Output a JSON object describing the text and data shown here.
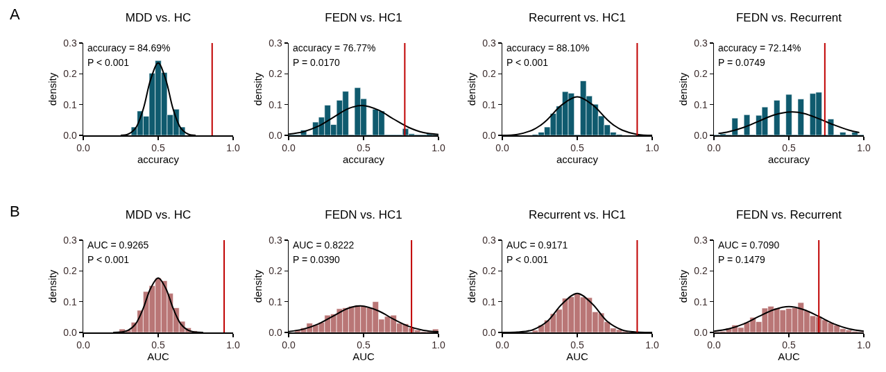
{
  "chart_data": [
    {
      "type": "histogram",
      "title": "MDD vs. HC",
      "xlabel": "accuracy",
      "ylabel": "density",
      "xlim": [
        0,
        1
      ],
      "xticks": [
        {
          "value": 0,
          "label": "0.0"
        },
        {
          "value": 0.5,
          "label": "0.5"
        },
        {
          "value": 1,
          "label": "1.0"
        }
      ],
      "ylim": [
        0,
        0.3
      ],
      "yticks": [
        {
          "value": 0,
          "label": "0.0"
        },
        {
          "value": 0.1,
          "label": "0.1"
        },
        {
          "value": 0.2,
          "label": "0.2"
        },
        {
          "value": 0.3,
          "label": "0.3"
        }
      ],
      "annotations": [
        "A",
        "accuracy = 84.69%",
        "P < 0.001"
      ],
      "ref_lines": [
        {
          "axis": "x",
          "value": 0.86,
          "color": "#c00000"
        }
      ],
      "series": [
        {
          "type": "histogram",
          "color": "#0f5a6e",
          "bins": [
            0.32,
            0.36,
            0.4,
            0.44,
            0.48,
            0.52,
            0.56,
            0.6,
            0.64,
            0.68
          ],
          "values": [
            0.027,
            0.079,
            0.062,
            0.202,
            0.243,
            0.204,
            0.067,
            0.085,
            0.027
          ]
        },
        {
          "type": "line",
          "color": "#000000",
          "x": [
            0.25,
            0.3,
            0.35,
            0.4,
            0.45,
            0.5,
            0.55,
            0.6,
            0.65,
            0.7,
            0.75
          ],
          "values": [
            0,
            0.004,
            0.024,
            0.085,
            0.182,
            0.235,
            0.182,
            0.085,
            0.024,
            0.004,
            0
          ]
        }
      ]
    },
    {
      "type": "histogram",
      "title": "FEDN vs. HC1",
      "xlabel": "accuracy",
      "ylabel": "density",
      "xlim": [
        0,
        1
      ],
      "xticks": [
        {
          "value": 0,
          "label": "0.0"
        },
        {
          "value": 0.5,
          "label": "0.5"
        },
        {
          "value": 1,
          "label": "1.0"
        }
      ],
      "ylim": [
        0,
        0.3
      ],
      "yticks": [
        {
          "value": 0,
          "label": "0.0"
        },
        {
          "value": 0.1,
          "label": "0.1"
        },
        {
          "value": 0.2,
          "label": "0.2"
        },
        {
          "value": 0.3,
          "label": "0.3"
        }
      ],
      "annotations": [
        "accuracy = 76.77%",
        "P = 0.0170"
      ],
      "ref_lines": [
        {
          "axis": "x",
          "value": 0.775,
          "color": "#c00000"
        }
      ],
      "series": [
        {
          "type": "histogram",
          "color": "#0f5a6e",
          "bins": [
            0,
            0.04,
            0.08,
            0.12,
            0.16,
            0.2,
            0.24,
            0.28,
            0.32,
            0.36,
            0.4,
            0.44,
            0.48,
            0.52,
            0.56,
            0.6,
            0.64,
            0.68,
            0.72,
            0.76,
            0.8,
            0.84,
            0.88,
            0.92,
            0.96,
            1
          ],
          "values": [
            0,
            0,
            0.017,
            0,
            0.043,
            0.059,
            0.098,
            0.035,
            0.114,
            0.143,
            0,
            0.155,
            0.119,
            0,
            0.085,
            0.079,
            0,
            0,
            0,
            0.022,
            0.005,
            0,
            0,
            0.005,
            0
          ]
        },
        {
          "type": "line",
          "color": "#000000",
          "x": [
            0,
            0.1,
            0.2,
            0.3,
            0.4,
            0.49,
            0.6,
            0.7,
            0.8,
            0.9,
            1
          ],
          "values": [
            0.004,
            0.012,
            0.03,
            0.059,
            0.087,
            0.097,
            0.082,
            0.053,
            0.026,
            0.009,
            0.003
          ]
        }
      ]
    },
    {
      "type": "histogram",
      "title": "Recurrent vs. HC1",
      "xlabel": "accuracy",
      "ylabel": "density",
      "xlim": [
        0,
        1
      ],
      "xticks": [
        {
          "value": 0,
          "label": "0.0"
        },
        {
          "value": 0.5,
          "label": "0.5"
        },
        {
          "value": 1,
          "label": "1.0"
        }
      ],
      "ylim": [
        0,
        0.3
      ],
      "yticks": [
        {
          "value": 0,
          "label": "0.0"
        },
        {
          "value": 0.1,
          "label": "0.1"
        },
        {
          "value": 0.2,
          "label": "0.2"
        },
        {
          "value": 0.3,
          "label": "0.3"
        }
      ],
      "annotations": [
        "accuracy = 88.10%",
        "P < 0.001"
      ],
      "ref_lines": [
        {
          "axis": "x",
          "value": 0.9,
          "color": "#c00000"
        }
      ],
      "series": [
        {
          "type": "histogram",
          "color": "#0f5a6e",
          "bins": [
            0.2,
            0.24,
            0.28,
            0.32,
            0.36,
            0.4,
            0.44,
            0.48,
            0.52,
            0.56,
            0.6,
            0.64,
            0.68,
            0.72,
            0.76,
            0.8
          ],
          "values": [
            0.003,
            0.01,
            0.027,
            0.071,
            0.095,
            0.142,
            0.137,
            0,
            0.177,
            0.128,
            0.101,
            0.063,
            0.034,
            0.01,
            0.003
          ]
        },
        {
          "type": "line",
          "color": "#000000",
          "x": [
            0,
            0.1,
            0.2,
            0.25,
            0.3,
            0.4,
            0.5,
            0.6,
            0.7,
            0.75,
            0.8,
            0.9,
            1
          ],
          "values": [
            0,
            0.003,
            0.017,
            0.031,
            0.051,
            0.1,
            0.125,
            0.1,
            0.051,
            0.031,
            0.017,
            0.003,
            0
          ]
        }
      ]
    },
    {
      "type": "histogram",
      "title": "FEDN vs. Recurrent",
      "xlabel": "accuracy",
      "ylabel": "density",
      "xlim": [
        0,
        1
      ],
      "xticks": [
        {
          "value": 0,
          "label": "0.0"
        },
        {
          "value": 0.5,
          "label": "0.5"
        },
        {
          "value": 1,
          "label": "1.0"
        }
      ],
      "ylim": [
        0,
        0.3
      ],
      "yticks": [
        {
          "value": 0,
          "label": "0.0"
        },
        {
          "value": 0.1,
          "label": "0.1"
        },
        {
          "value": 0.2,
          "label": "0.2"
        },
        {
          "value": 0.3,
          "label": "0.3"
        }
      ],
      "annotations": [
        "accuracy = 72.14%",
        "P = 0.0749"
      ],
      "ref_lines": [
        {
          "axis": "x",
          "value": 0.74,
          "color": "#c00000"
        }
      ],
      "series": [
        {
          "type": "histogram",
          "color": "#0f5a6e",
          "bins": [
            0,
            0.04,
            0.08,
            0.12,
            0.16,
            0.2,
            0.24,
            0.28,
            0.32,
            0.36,
            0.4,
            0.44,
            0.48,
            0.52,
            0.56,
            0.6,
            0.64,
            0.68,
            0.72,
            0.76,
            0.8,
            0.84,
            0.88,
            0.92,
            0.96,
            1
          ],
          "values": [
            0,
            0.005,
            0,
            0.056,
            0,
            0.067,
            0,
            0.065,
            0.092,
            0,
            0.114,
            0,
            0.133,
            0,
            0.118,
            0,
            0.136,
            0.14,
            0,
            0.053,
            0,
            0.01,
            0,
            0.01,
            0
          ]
        },
        {
          "type": "line",
          "color": "#000000",
          "x": [
            0.03,
            0.1,
            0.2,
            0.3,
            0.4,
            0.52,
            0.6,
            0.7,
            0.8,
            0.9,
            0.97
          ],
          "values": [
            0.006,
            0.012,
            0.026,
            0.046,
            0.066,
            0.076,
            0.071,
            0.054,
            0.034,
            0.017,
            0.009
          ]
        }
      ]
    },
    {
      "type": "histogram",
      "title": "MDD vs. HC",
      "xlabel": "AUC",
      "ylabel": "density",
      "xlim": [
        0,
        1
      ],
      "xticks": [
        {
          "value": 0,
          "label": "0.0"
        },
        {
          "value": 0.5,
          "label": "0.5"
        },
        {
          "value": 1,
          "label": "1.0"
        }
      ],
      "ylim": [
        0,
        0.3
      ],
      "yticks": [
        {
          "value": 0,
          "label": "0.0"
        },
        {
          "value": 0.1,
          "label": "0.1"
        },
        {
          "value": 0.2,
          "label": "0.2"
        },
        {
          "value": 0.3,
          "label": "0.3"
        }
      ],
      "annotations": [
        "B",
        "AUC = 0.9265",
        "P < 0.001"
      ],
      "ref_lines": [
        {
          "axis": "x",
          "value": 0.94,
          "color": "#c00000"
        }
      ],
      "series": [
        {
          "type": "histogram",
          "color": "#b97676",
          "bins": [
            0.24,
            0.28,
            0.32,
            0.36,
            0.4,
            0.44,
            0.48,
            0.52,
            0.56,
            0.6,
            0.64,
            0.68,
            0.72,
            0.76
          ],
          "values": [
            0.011,
            0.008,
            0.033,
            0.072,
            0.133,
            0.152,
            0.177,
            0.168,
            0.127,
            0.08,
            0.036,
            0.015,
            0.005
          ]
        },
        {
          "type": "line",
          "color": "#000000",
          "x": [
            0.2,
            0.25,
            0.3,
            0.35,
            0.4,
            0.45,
            0.5,
            0.55,
            0.6,
            0.65,
            0.7,
            0.75,
            0.8
          ],
          "values": [
            0,
            0.001,
            0.007,
            0.028,
            0.078,
            0.144,
            0.177,
            0.144,
            0.078,
            0.028,
            0.007,
            0.001,
            0
          ]
        }
      ]
    },
    {
      "type": "histogram",
      "title": "FEDN vs. HC1",
      "xlabel": "AUC",
      "ylabel": "density",
      "xlim": [
        0,
        1
      ],
      "xticks": [
        {
          "value": 0,
          "label": "0.0"
        },
        {
          "value": 0.5,
          "label": "0.5"
        },
        {
          "value": 1,
          "label": "1.0"
        }
      ],
      "ylim": [
        0,
        0.3
      ],
      "yticks": [
        {
          "value": 0,
          "label": "0.0"
        },
        {
          "value": 0.1,
          "label": "0.1"
        },
        {
          "value": 0.2,
          "label": "0.2"
        },
        {
          "value": 0.3,
          "label": "0.3"
        }
      ],
      "annotations": [
        "AUC = 0.8222",
        "P = 0.0390"
      ],
      "ref_lines": [
        {
          "axis": "x",
          "value": 0.82,
          "color": "#c00000"
        }
      ],
      "series": [
        {
          "type": "histogram",
          "color": "#b97676",
          "bins": [
            0,
            0.04,
            0.08,
            0.12,
            0.16,
            0.2,
            0.24,
            0.28,
            0.32,
            0.36,
            0.4,
            0.44,
            0.48,
            0.52,
            0.56,
            0.6,
            0.64,
            0.68,
            0.72,
            0.76,
            0.8,
            0.84,
            0.88,
            0.92,
            0.96,
            1
          ],
          "values": [
            null,
            0.008,
            0.015,
            0.03,
            0.025,
            0.033,
            0.056,
            0.06,
            0.077,
            0.08,
            0.085,
            0.088,
            0.085,
            0.081,
            0.1,
            0.043,
            0.052,
            0.056,
            0.03,
            0.028,
            0.015,
            0.008,
            0.003,
            0.003,
            0.011
          ]
        },
        {
          "type": "line",
          "color": "#000000",
          "x": [
            0,
            0.1,
            0.2,
            0.3,
            0.4,
            0.48,
            0.6,
            0.7,
            0.8,
            0.9,
            1
          ],
          "values": [
            0.003,
            0.011,
            0.028,
            0.054,
            0.079,
            0.086,
            0.07,
            0.043,
            0.02,
            0.007,
            0.002
          ]
        }
      ]
    },
    {
      "type": "histogram",
      "title": "Recurrent vs. HC1",
      "xlabel": "AUC",
      "ylabel": "density",
      "xlim": [
        0,
        1
      ],
      "xticks": [
        {
          "value": 0,
          "label": "0.0"
        },
        {
          "value": 0.5,
          "label": "0.5"
        },
        {
          "value": 1,
          "label": "1.0"
        }
      ],
      "ylim": [
        0,
        0.3
      ],
      "yticks": [
        {
          "value": 0,
          "label": "0.0"
        },
        {
          "value": 0.1,
          "label": "0.1"
        },
        {
          "value": 0.2,
          "label": "0.2"
        },
        {
          "value": 0.3,
          "label": "0.3"
        }
      ],
      "annotations": [
        "AUC = 0.9171",
        "P < 0.001"
      ],
      "ref_lines": [
        {
          "axis": "x",
          "value": 0.9,
          "color": "#c00000"
        }
      ],
      "series": [
        {
          "type": "histogram",
          "color": "#b97676",
          "bins": [
            0.2,
            0.24,
            0.28,
            0.32,
            0.36,
            0.4,
            0.44,
            0.48,
            0.52,
            0.56,
            0.6,
            0.64,
            0.68,
            0.72,
            0.76,
            0.8,
            0.84
          ],
          "values": [
            0.007,
            0.024,
            0.04,
            0.061,
            0.075,
            0.111,
            0.116,
            0.125,
            0.115,
            0.113,
            0.067,
            0.063,
            0.035,
            0.014,
            0.009,
            0.004
          ]
        },
        {
          "type": "line",
          "color": "#000000",
          "x": [
            0,
            0.1,
            0.2,
            0.3,
            0.4,
            0.5,
            0.6,
            0.7,
            0.8,
            0.9,
            1
          ],
          "values": [
            0,
            0.001,
            0.008,
            0.036,
            0.093,
            0.127,
            0.093,
            0.036,
            0.008,
            0.001,
            0
          ]
        }
      ]
    },
    {
      "type": "histogram",
      "title": "FEDN vs. Recurrent",
      "xlabel": "AUC",
      "ylabel": "density",
      "xlim": [
        0,
        1
      ],
      "xticks": [
        {
          "value": 0,
          "label": "0.0"
        },
        {
          "value": 0.5,
          "label": "0.5"
        },
        {
          "value": 1,
          "label": "1.0"
        }
      ],
      "ylim": [
        0,
        0.3
      ],
      "yticks": [
        {
          "value": 0,
          "label": "0.0"
        },
        {
          "value": 0.1,
          "label": "0.1"
        },
        {
          "value": 0.2,
          "label": "0.2"
        },
        {
          "value": 0.3,
          "label": "0.3"
        }
      ],
      "annotations": [
        "AUC = 0.7090",
        "P = 0.1479"
      ],
      "ref_lines": [
        {
          "axis": "x",
          "value": 0.7,
          "color": "#c00000"
        }
      ],
      "series": [
        {
          "type": "histogram",
          "color": "#b97676",
          "bins": [
            0,
            0.04,
            0.08,
            0.12,
            0.16,
            0.2,
            0.24,
            0.28,
            0.32,
            0.36,
            0.4,
            0.44,
            0.48,
            0.52,
            0.56,
            0.6,
            0.64,
            0.68,
            0.72,
            0.76,
            0.8,
            0.84,
            0.88,
            0.92,
            0.96,
            1
          ],
          "values": [
            0.002,
            0.004,
            0.014,
            0.024,
            0.016,
            0.033,
            0.049,
            0.035,
            0.079,
            0.085,
            0.079,
            0.073,
            0.078,
            0.08,
            0.097,
            0.071,
            0.054,
            0.051,
            0.041,
            0.032,
            0.024,
            0.012,
            0.008,
            0.004,
            0.002
          ]
        },
        {
          "type": "line",
          "color": "#000000",
          "x": [
            0,
            0.1,
            0.2,
            0.3,
            0.4,
            0.5,
            0.6,
            0.7,
            0.8,
            0.9,
            1
          ],
          "values": [
            0.004,
            0.012,
            0.028,
            0.052,
            0.074,
            0.084,
            0.074,
            0.052,
            0.028,
            0.012,
            0.004
          ]
        }
      ]
    }
  ]
}
